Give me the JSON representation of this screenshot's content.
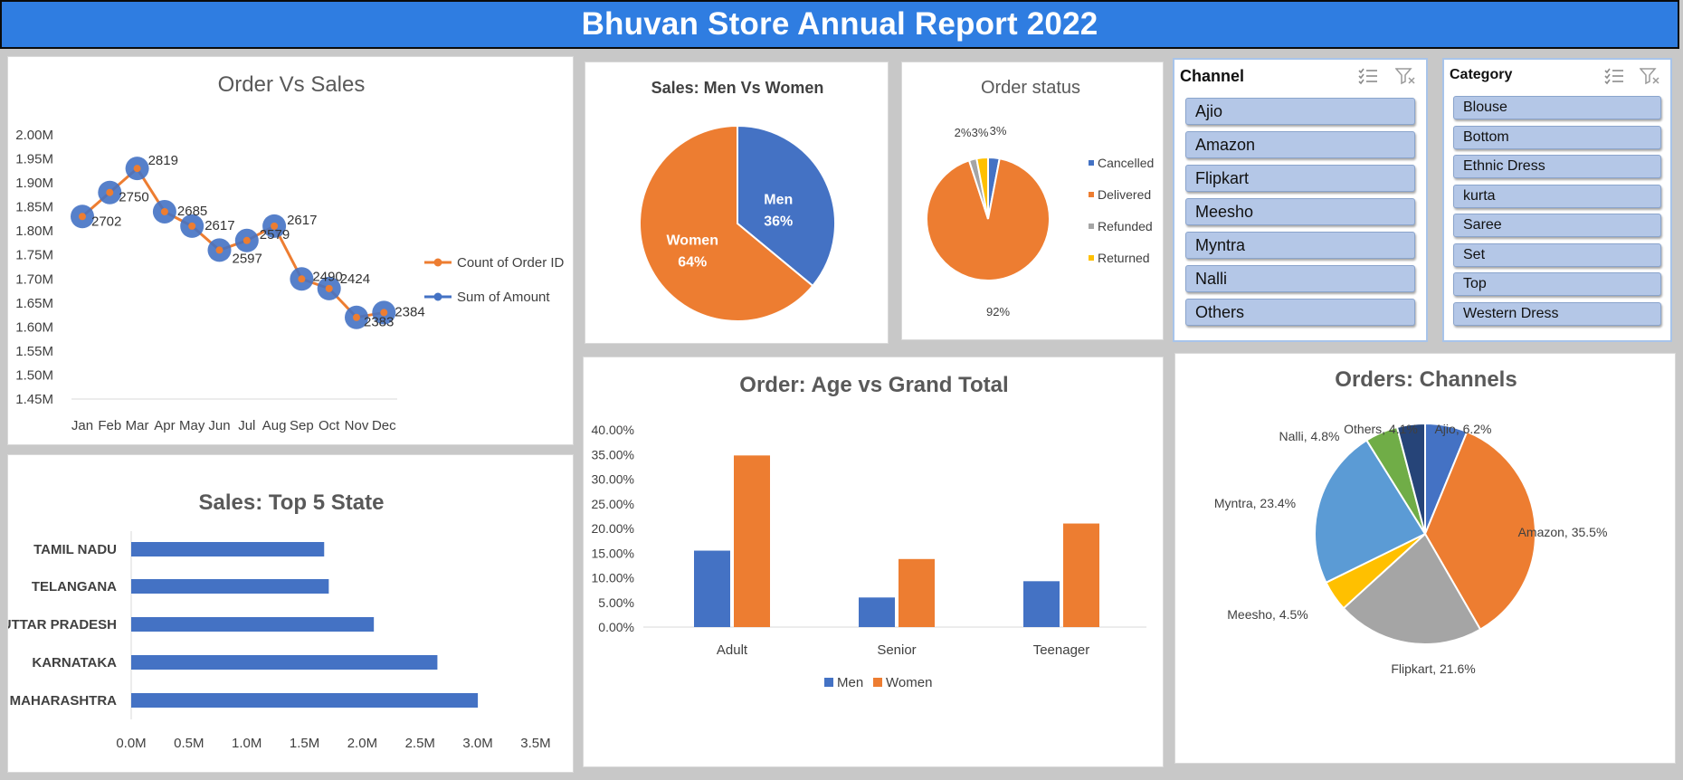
{
  "title": "Bhuvan Store Annual Report 2022",
  "colors": {
    "blue": "#4472c4",
    "orange": "#ed7d31",
    "gray": "#a5a5a5",
    "yellow": "#ffc000",
    "lightblue": "#5b9bd5",
    "green": "#70ad47",
    "navy": "#264478"
  },
  "slicers": {
    "channel": {
      "title": "Channel",
      "items": [
        "Ajio",
        "Amazon",
        "Flipkart",
        "Meesho",
        "Myntra",
        "Nalli",
        "Others"
      ]
    },
    "category": {
      "title": "Category",
      "items": [
        "Blouse",
        "Bottom",
        "Ethnic Dress",
        "kurta",
        "Saree",
        "Set",
        "Top",
        "Western Dress"
      ]
    }
  },
  "chart_data": [
    {
      "id": "order_vs_sales",
      "type": "line",
      "title": "Order Vs Sales",
      "categories": [
        "Jan",
        "Feb",
        "Mar",
        "Apr",
        "May",
        "Jun",
        "Jul",
        "Aug",
        "Sep",
        "Oct",
        "Nov",
        "Dec"
      ],
      "y_ticks": [
        "2.00M",
        "1.95M",
        "1.90M",
        "1.85M",
        "1.80M",
        "1.75M",
        "1.70M",
        "1.65M",
        "1.60M",
        "1.55M",
        "1.50M",
        "1.45M"
      ],
      "ylim": [
        1.45,
        2.0
      ],
      "series": [
        {
          "name": "Count of Order ID",
          "values": [
            2702,
            2750,
            2819,
            2685,
            2617,
            2597,
            2579,
            2617,
            2490,
            2424,
            2383,
            2384
          ],
          "labels": [
            "2702",
            "2750",
            "2819",
            "2685",
            "2617",
            "2597",
            "2579",
            "2617",
            "2490",
            "2424",
            "2383",
            "2384"
          ]
        },
        {
          "name": "Sum of Amount",
          "values": [
            1.83,
            1.88,
            1.93,
            1.84,
            1.81,
            1.76,
            1.78,
            1.81,
            1.7,
            1.68,
            1.62,
            1.63
          ]
        }
      ],
      "legend": "right"
    },
    {
      "id": "sales_men_women",
      "type": "pie",
      "title": "Sales: Men Vs Women",
      "slices": [
        {
          "label": "Men",
          "value": 36,
          "text": "36%"
        },
        {
          "label": "Women",
          "value": 64,
          "text": "64%"
        }
      ]
    },
    {
      "id": "order_status",
      "type": "pie",
      "title": "Order status",
      "slices": [
        {
          "label": "Cancelled",
          "value": 3,
          "text": "3%"
        },
        {
          "label": "Delivered",
          "value": 92,
          "text": "92%"
        },
        {
          "label": "Refunded",
          "value": 2,
          "text": "2%"
        },
        {
          "label": "Returned",
          "value": 3,
          "text": "3%"
        }
      ],
      "legend": "right"
    },
    {
      "id": "top5_state",
      "type": "bar",
      "orientation": "horizontal",
      "title": "Sales: Top 5 State",
      "categories": [
        "TAMIL NADU",
        "TELANGANA",
        "UTTAR PRADESH",
        "KARNATAKA",
        "MAHARASHTRA"
      ],
      "values": [
        1.67,
        1.71,
        2.1,
        2.65,
        3.0
      ],
      "x_ticks": [
        "0.0M",
        "0.5M",
        "1.0M",
        "1.5M",
        "2.0M",
        "2.5M",
        "3.0M",
        "3.5M"
      ],
      "xlim": [
        0,
        3.5
      ]
    },
    {
      "id": "age_vs_total",
      "type": "bar",
      "title": "Order: Age vs Grand Total",
      "categories": [
        "Adult",
        "Senior",
        "Teenager"
      ],
      "series": [
        {
          "name": "Men",
          "values": [
            15.5,
            6.0,
            9.3
          ]
        },
        {
          "name": "Women",
          "values": [
            34.8,
            13.8,
            21.0
          ]
        }
      ],
      "y_ticks": [
        "40.00%",
        "35.00%",
        "30.00%",
        "25.00%",
        "20.00%",
        "15.00%",
        "10.00%",
        "5.00%",
        "0.00%"
      ],
      "ylim": [
        0,
        40
      ],
      "legend": "bottom"
    },
    {
      "id": "orders_channels",
      "type": "pie",
      "title": "Orders: Channels",
      "slices": [
        {
          "label": "Ajio, 6.2%",
          "value": 6.2
        },
        {
          "label": "Amazon, 35.5%",
          "value": 35.5
        },
        {
          "label": "Flipkart, 21.6%",
          "value": 21.6
        },
        {
          "label": "Meesho, 4.5%",
          "value": 4.5
        },
        {
          "label": "Myntra, 23.4%",
          "value": 23.4
        },
        {
          "label": "Nalli, 4.8%",
          "value": 4.8
        },
        {
          "label": "Others, 4.1%",
          "value": 4.1
        }
      ]
    }
  ]
}
